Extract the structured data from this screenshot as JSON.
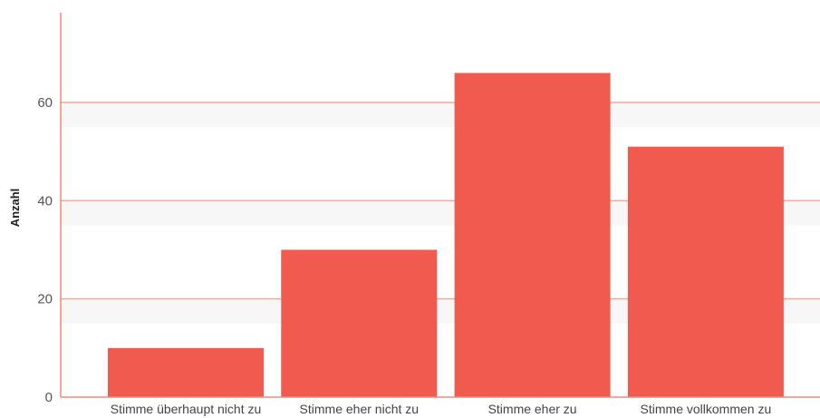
{
  "chart_data": {
    "type": "bar",
    "title": "",
    "xlabel": "",
    "ylabel": "Anzahl",
    "categories": [
      "Stimme überhaupt nicht zu",
      "Stimme eher nicht zu",
      "Stimme eher zu",
      "Stimme vollkommen zu"
    ],
    "values": [
      10,
      30,
      66,
      51
    ],
    "ylim": [
      0,
      78
    ],
    "yticks": [
      0,
      20,
      40,
      60
    ],
    "grid": true,
    "legend": "none",
    "colors": {
      "bar": "#f05a4f",
      "grid": "#f4a89a",
      "axis": "#f08a78",
      "band": "#f7f7f7"
    }
  }
}
